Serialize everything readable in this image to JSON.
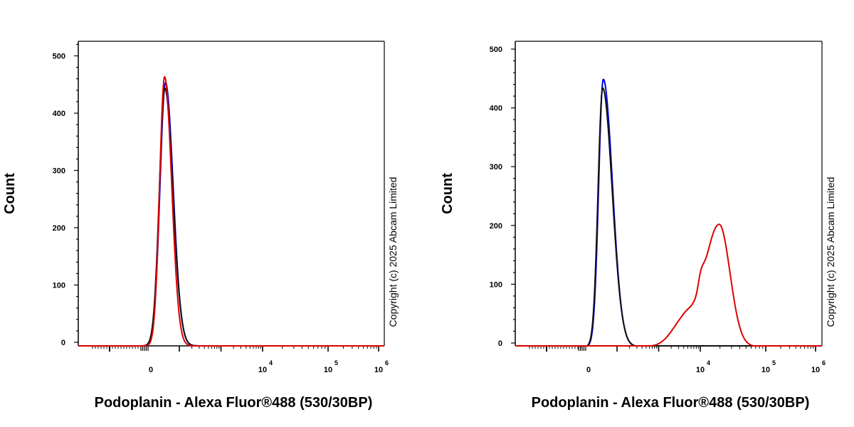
{
  "chart_data": [
    {
      "type": "line",
      "xlabel": "Podoplanin - Alexa Fluor®488 (530/30BP)",
      "ylabel": "Count",
      "ylim": [
        0,
        530
      ],
      "yticks": [
        0,
        100,
        200,
        300,
        400,
        500
      ],
      "xticks": [
        {
          "base": "0",
          "exp": ""
        },
        {
          "base": "10",
          "exp": "4"
        },
        {
          "base": "10",
          "exp": "5"
        },
        {
          "base": "10",
          "exp": "6"
        }
      ],
      "watermark": "Copyright (c) 2025 Abcam Limited",
      "series": [
        {
          "color": "#0000dd",
          "peak": {
            "x": 0.335,
            "y": 460
          }
        },
        {
          "color": "#111111",
          "peak": {
            "x": 0.335,
            "y": 450
          }
        },
        {
          "color": "#dd0000",
          "peak": {
            "x": 0.34,
            "y": 470
          }
        }
      ]
    },
    {
      "type": "line",
      "xlabel": "Podoplanin - Alexa Fluor®488 (530/30BP)",
      "ylabel": "Count",
      "ylim": [
        0,
        520
      ],
      "yticks": [
        0,
        100,
        200,
        300,
        400,
        500
      ],
      "xticks": [
        {
          "base": "0",
          "exp": ""
        },
        {
          "base": "10",
          "exp": "4"
        },
        {
          "base": "10",
          "exp": "5"
        },
        {
          "base": "10",
          "exp": "6"
        }
      ],
      "watermark": "Copyright (c) 2025 Abcam Limited",
      "series": [
        {
          "color": "#0000dd",
          "peak": {
            "x": 0.335,
            "y": 455
          }
        },
        {
          "color": "#111111",
          "peak": {
            "x": 0.335,
            "y": 440
          }
        },
        {
          "color": "#dd0000",
          "peak": {
            "x": 0.67,
            "y": 208
          }
        }
      ]
    }
  ]
}
